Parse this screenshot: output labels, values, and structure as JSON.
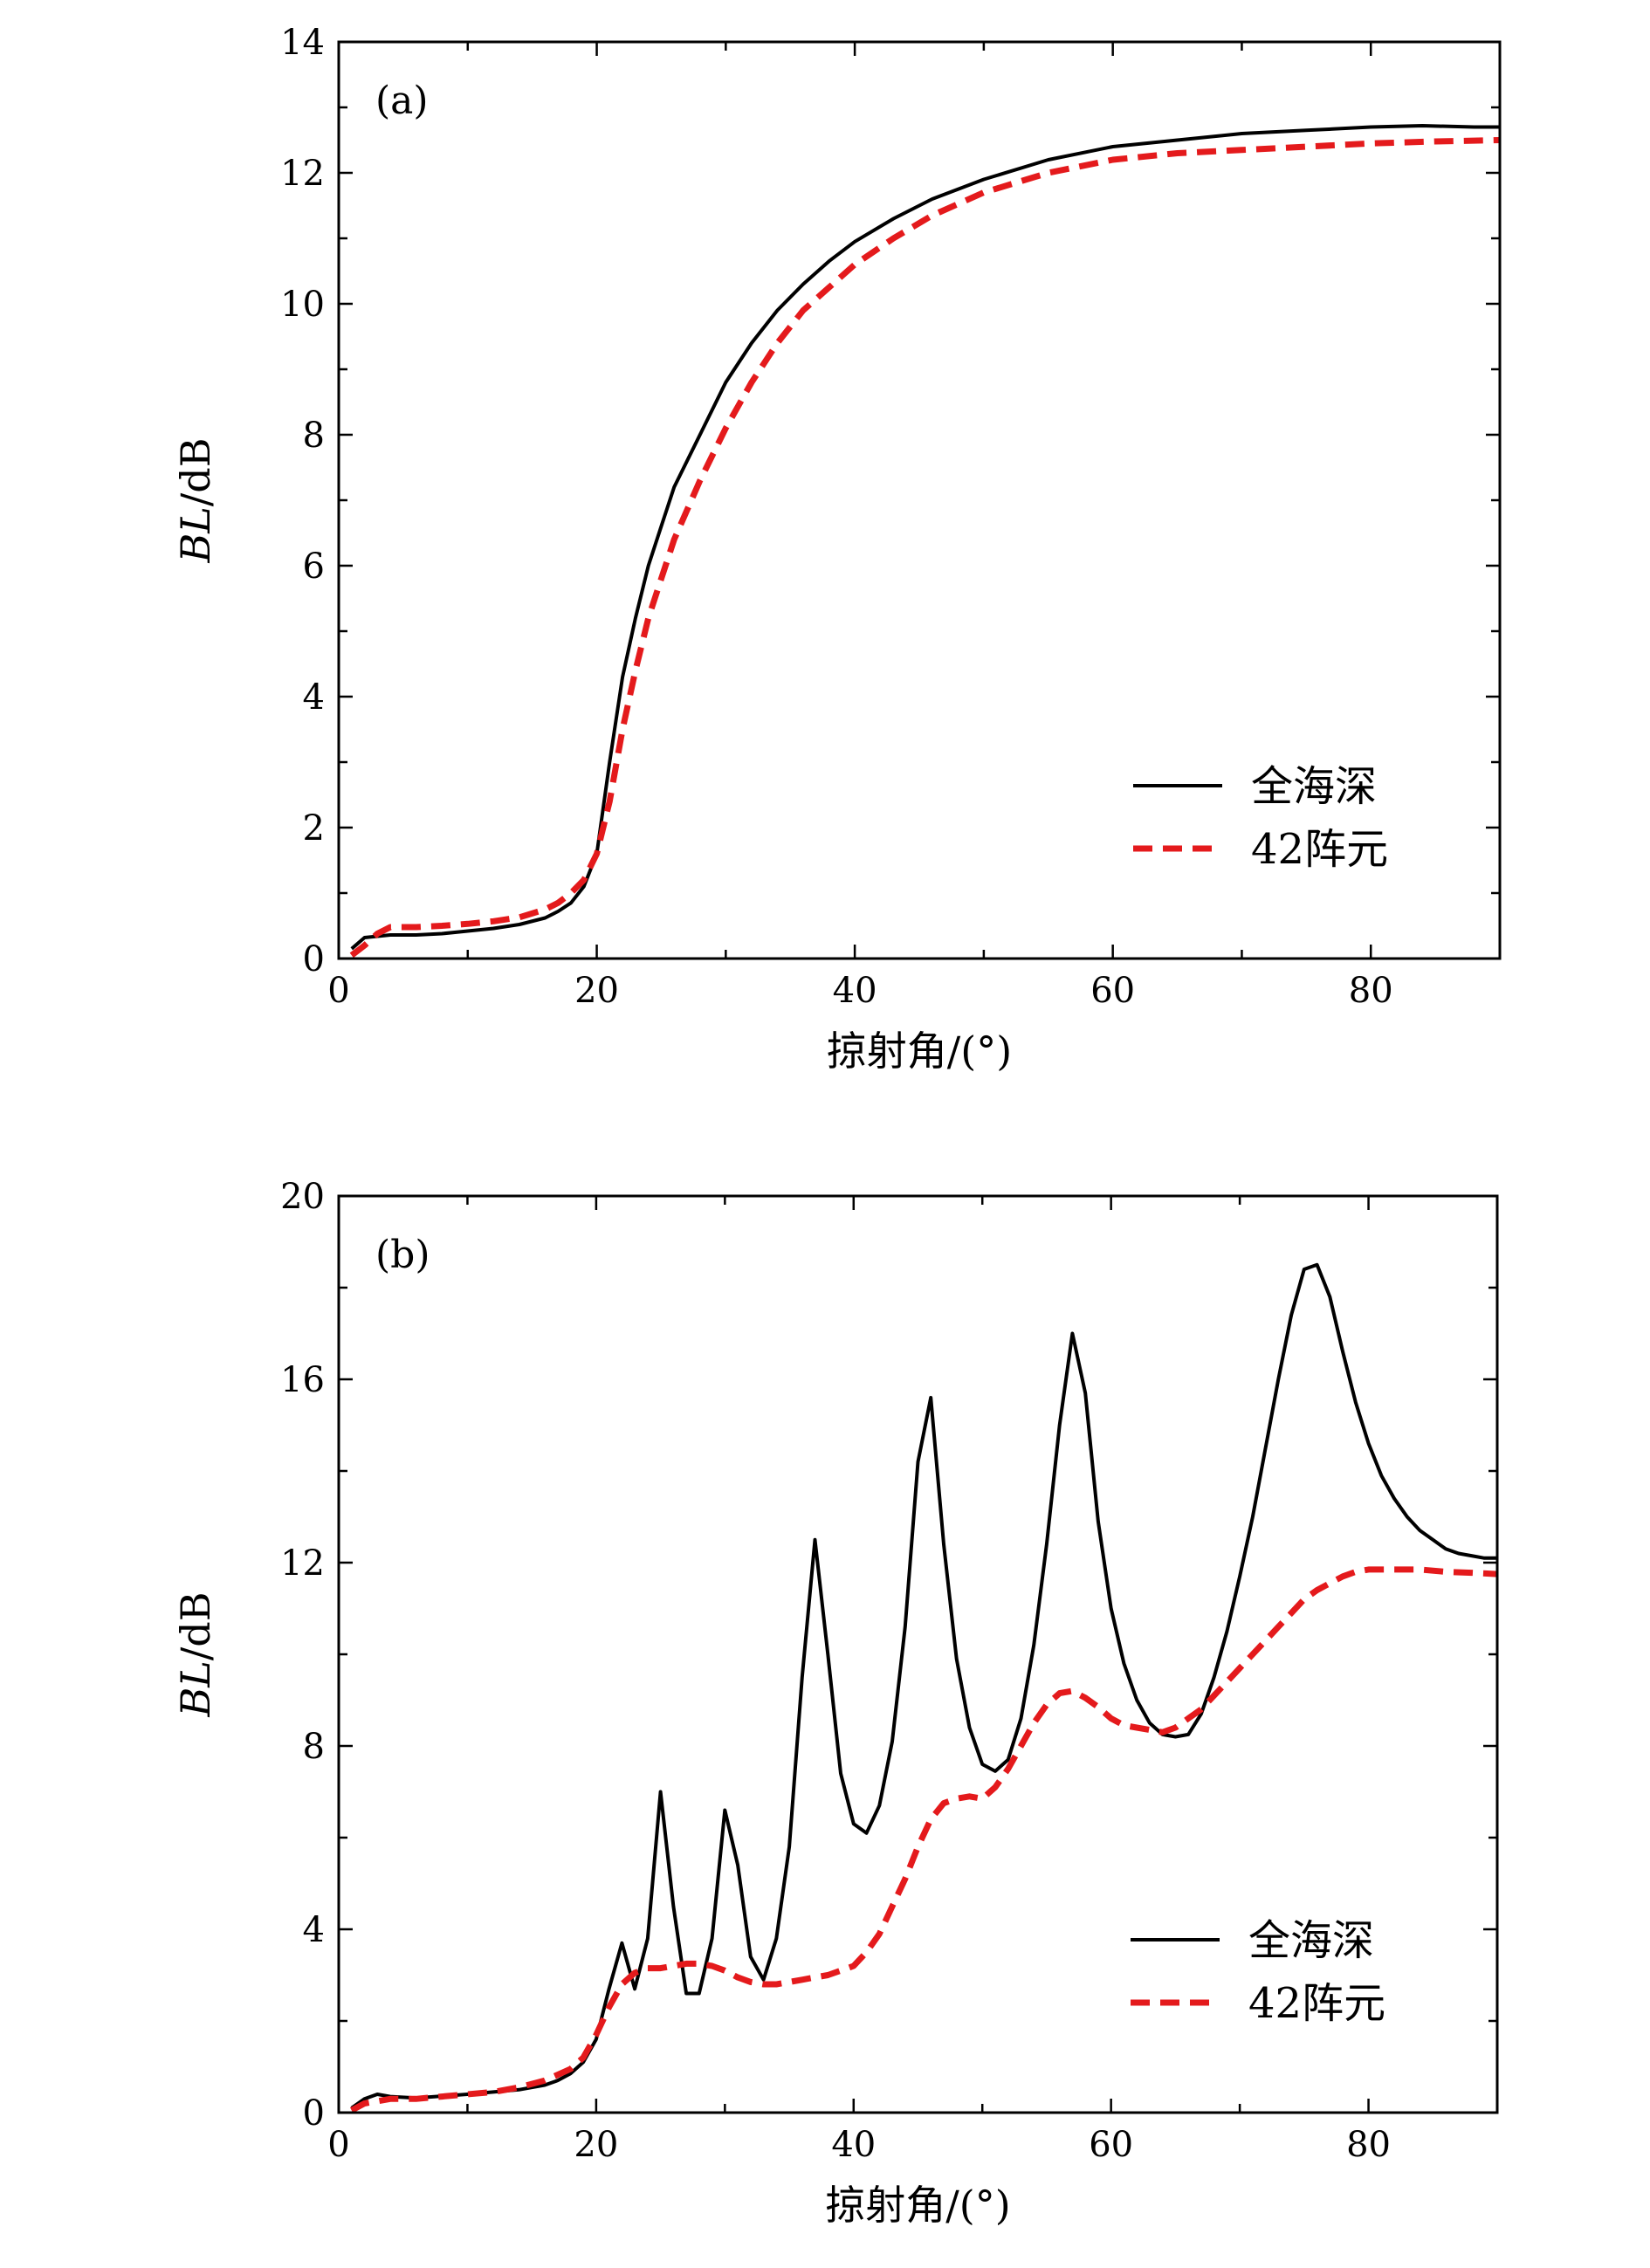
{
  "chart_data": [
    {
      "type": "line",
      "panel_label": "(a)",
      "xlabel": "掠射角/(°)",
      "ylabel_parts": [
        "BL",
        "/dB"
      ],
      "xlim": [
        0,
        90
      ],
      "ylim": [
        0,
        14
      ],
      "xticks": [
        0,
        20,
        40,
        60,
        80
      ],
      "yticks": [
        0,
        2,
        4,
        6,
        8,
        10,
        12,
        14
      ],
      "legend": {
        "position": "lower-right"
      },
      "series": [
        {
          "name": "全海深",
          "color": "#000000",
          "style": "solid",
          "x": [
            1,
            2,
            4,
            6,
            8,
            10,
            12,
            14,
            16,
            17,
            18,
            19,
            20,
            21,
            22,
            23,
            24,
            25,
            26,
            28,
            30,
            32,
            34,
            36,
            38,
            40,
            43,
            46,
            50,
            55,
            60,
            65,
            70,
            75,
            80,
            84,
            88,
            90
          ],
          "y": [
            0.15,
            0.32,
            0.36,
            0.36,
            0.38,
            0.42,
            0.46,
            0.52,
            0.62,
            0.72,
            0.85,
            1.1,
            1.6,
            3.0,
            4.3,
            5.2,
            6.0,
            6.6,
            7.2,
            8.0,
            8.8,
            9.4,
            9.9,
            10.3,
            10.65,
            10.95,
            11.3,
            11.6,
            11.9,
            12.2,
            12.4,
            12.5,
            12.6,
            12.65,
            12.7,
            12.72,
            12.7,
            12.7
          ]
        },
        {
          "name": "42阵元",
          "color": "#e41a1c",
          "style": "dashed",
          "x": [
            1,
            2,
            3,
            4,
            6,
            8,
            10,
            12,
            14,
            16,
            17,
            18,
            19,
            20,
            21,
            22,
            23,
            24,
            25,
            26,
            28,
            30,
            32,
            34,
            36,
            38,
            40,
            43,
            46,
            50,
            55,
            60,
            65,
            70,
            75,
            80,
            85,
            90
          ],
          "y": [
            0.05,
            0.2,
            0.38,
            0.48,
            0.48,
            0.5,
            0.53,
            0.57,
            0.63,
            0.75,
            0.85,
            1.0,
            1.2,
            1.6,
            2.4,
            3.5,
            4.4,
            5.2,
            5.8,
            6.4,
            7.3,
            8.1,
            8.8,
            9.4,
            9.9,
            10.25,
            10.6,
            11.0,
            11.35,
            11.7,
            12.0,
            12.2,
            12.3,
            12.35,
            12.4,
            12.45,
            12.48,
            12.5
          ]
        }
      ]
    },
    {
      "type": "line",
      "panel_label": "(b)",
      "xlabel": "掠射角/(°)",
      "ylabel_parts": [
        "BL",
        "/dB"
      ],
      "xlim": [
        0,
        90
      ],
      "ylim": [
        0,
        20
      ],
      "xticks": [
        0,
        20,
        40,
        60,
        80
      ],
      "yticks": [
        0,
        4,
        8,
        12,
        16,
        20
      ],
      "legend": {
        "position": "lower-right"
      },
      "series": [
        {
          "name": "全海深",
          "color": "#000000",
          "style": "solid",
          "x": [
            1,
            2,
            3,
            4,
            6,
            8,
            10,
            12,
            14,
            16,
            17,
            18,
            19,
            20,
            21,
            22,
            23,
            24,
            25,
            26,
            27,
            28,
            29,
            30,
            31,
            32,
            33,
            34,
            35,
            36,
            37,
            38,
            39,
            40,
            41,
            42,
            43,
            44,
            45,
            46,
            47,
            48,
            49,
            50,
            51,
            52,
            53,
            54,
            55,
            56,
            57,
            58,
            59,
            60,
            61,
            62,
            63,
            64,
            65,
            66,
            67,
            68,
            69,
            70,
            71,
            72,
            73,
            74,
            75,
            76,
            77,
            78,
            79,
            80,
            81,
            82,
            83,
            84,
            85,
            86,
            87,
            88,
            89,
            90
          ],
          "y": [
            0.1,
            0.3,
            0.4,
            0.35,
            0.32,
            0.36,
            0.4,
            0.45,
            0.5,
            0.6,
            0.7,
            0.85,
            1.1,
            1.6,
            2.7,
            3.7,
            2.7,
            3.8,
            7.0,
            4.5,
            2.6,
            2.6,
            3.8,
            6.6,
            5.4,
            3.4,
            2.9,
            3.8,
            5.8,
            9.5,
            12.5,
            10.0,
            7.4,
            6.3,
            6.1,
            6.7,
            8.1,
            10.6,
            14.2,
            15.6,
            12.4,
            9.9,
            8.4,
            7.6,
            7.45,
            7.7,
            8.6,
            10.2,
            12.4,
            15.0,
            17.0,
            15.7,
            12.9,
            11.0,
            9.8,
            9.0,
            8.5,
            8.25,
            8.2,
            8.25,
            8.7,
            9.5,
            10.5,
            11.7,
            13.0,
            14.5,
            16.0,
            17.4,
            18.4,
            18.5,
            17.8,
            16.6,
            15.5,
            14.6,
            13.9,
            13.4,
            13.0,
            12.7,
            12.5,
            12.3,
            12.2,
            12.15,
            12.1,
            12.1
          ]
        },
        {
          "name": "42阵元",
          "color": "#e41a1c",
          "style": "dashed",
          "x": [
            1,
            2,
            4,
            6,
            8,
            10,
            12,
            14,
            16,
            18,
            19,
            20,
            21,
            22,
            23,
            24,
            25,
            26,
            27,
            28,
            29,
            30,
            31,
            32,
            33,
            34,
            35,
            36,
            37,
            38,
            39,
            40,
            41,
            42,
            43,
            44,
            45,
            46,
            47,
            48,
            49,
            50,
            51,
            52,
            53,
            54,
            55,
            56,
            57,
            58,
            59,
            60,
            61,
            62,
            63,
            64,
            65,
            66,
            67,
            68,
            69,
            70,
            71,
            72,
            73,
            74,
            75,
            76,
            77,
            78,
            79,
            80,
            82,
            84,
            86,
            88,
            90
          ],
          "y": [
            0.05,
            0.2,
            0.3,
            0.3,
            0.35,
            0.4,
            0.45,
            0.55,
            0.7,
            0.95,
            1.2,
            1.7,
            2.3,
            2.8,
            3.05,
            3.15,
            3.15,
            3.2,
            3.25,
            3.25,
            3.2,
            3.1,
            2.95,
            2.85,
            2.8,
            2.8,
            2.85,
            2.9,
            2.95,
            3.0,
            3.1,
            3.2,
            3.5,
            3.9,
            4.5,
            5.1,
            5.8,
            6.4,
            6.75,
            6.85,
            6.9,
            6.85,
            7.1,
            7.5,
            8.0,
            8.5,
            8.9,
            9.15,
            9.2,
            9.05,
            8.85,
            8.6,
            8.45,
            8.4,
            8.35,
            8.3,
            8.4,
            8.6,
            8.8,
            9.1,
            9.4,
            9.7,
            10.0,
            10.3,
            10.6,
            10.9,
            11.2,
            11.4,
            11.55,
            11.7,
            11.8,
            11.85,
            11.85,
            11.85,
            11.8,
            11.78,
            11.75
          ]
        }
      ]
    }
  ]
}
